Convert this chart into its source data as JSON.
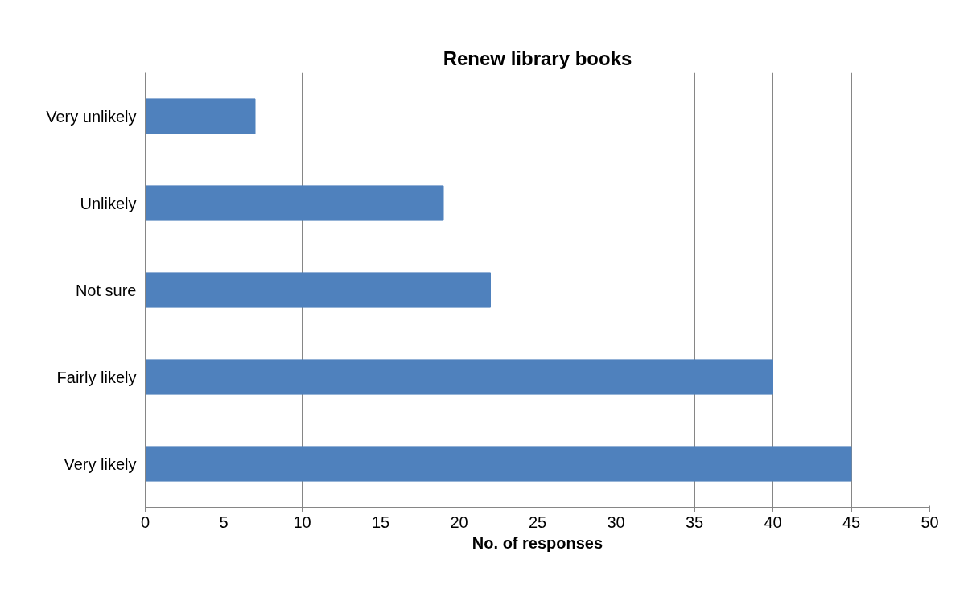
{
  "chart_data": {
    "type": "bar",
    "orientation": "horizontal",
    "title": "Renew library books",
    "xlabel": "No. of responses",
    "categories": [
      "Very unlikely",
      "Unlikely",
      "Not sure",
      "Fairly likely",
      "Very likely"
    ],
    "values": [
      7,
      19,
      22,
      40,
      45
    ],
    "color": "#4f81bd",
    "xlim": [
      0,
      50
    ],
    "xticks": [
      0,
      5,
      10,
      15,
      20,
      25,
      30,
      35,
      40,
      45,
      50
    ],
    "grid": "x"
  }
}
